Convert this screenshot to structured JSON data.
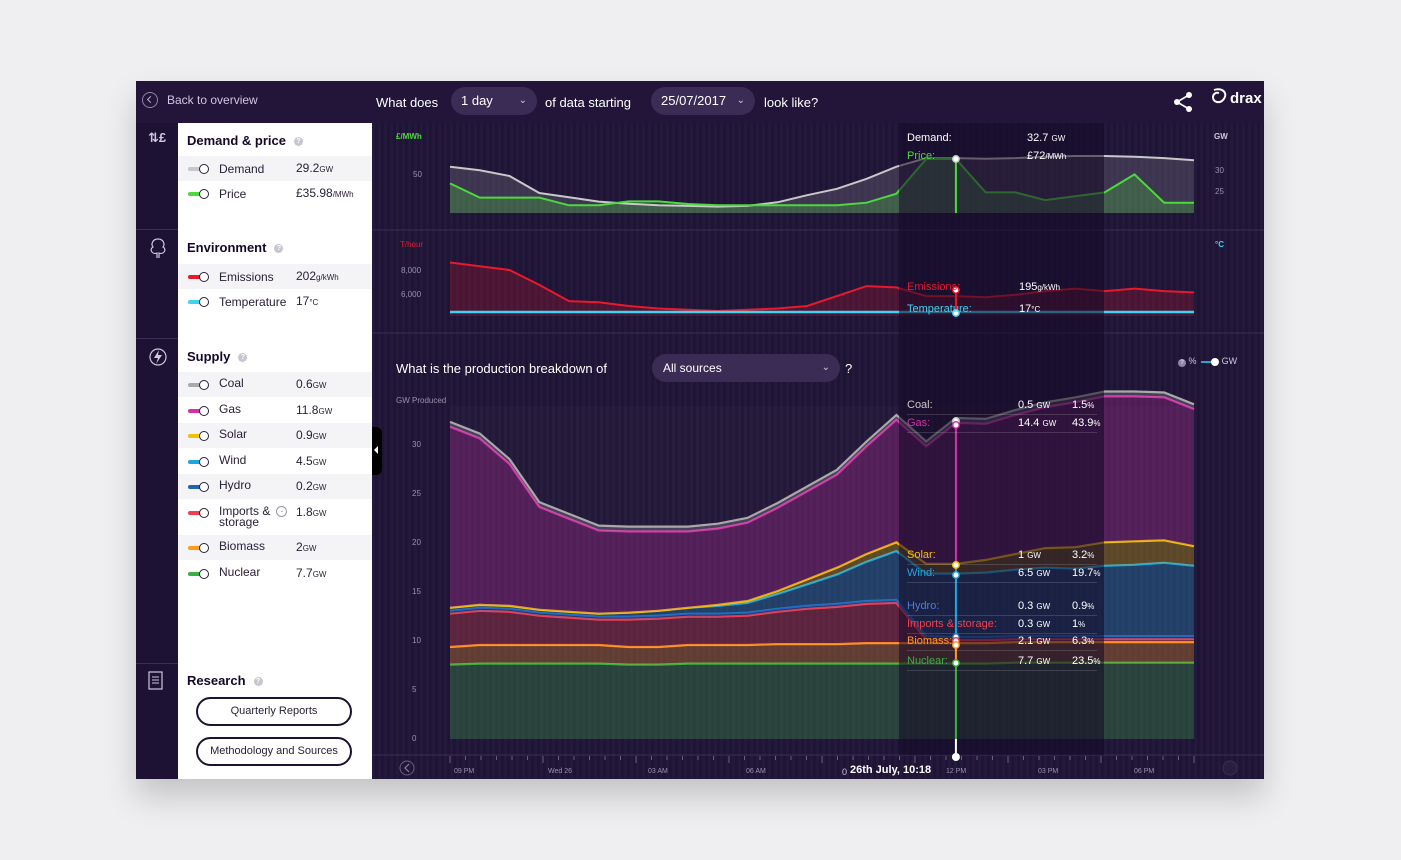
{
  "header": {
    "back_label": "Back to overview",
    "q_prefix": "What does",
    "period": "1 day",
    "q_mid": "of data starting",
    "start_date": "25/07/2017",
    "q_suffix": "look like?",
    "logo_text": "drax"
  },
  "panel": {
    "demand_price": {
      "title": "Demand & price",
      "rows": [
        {
          "label": "Demand",
          "value": "29.2",
          "unit": "GW",
          "color": "#c8c8c8"
        },
        {
          "label": "Price",
          "value": "£35.98",
          "unit": "/MWh",
          "color": "#4cd93c"
        }
      ]
    },
    "environment": {
      "title": "Environment",
      "rows": [
        {
          "label": "Emissions",
          "value": "202",
          "unit": "g/kWh",
          "color": "#e8192c"
        },
        {
          "label": "Temperature",
          "value": "17",
          "unit": "°C",
          "color": "#3fd3f0"
        }
      ]
    },
    "supply": {
      "title": "Supply",
      "rows": [
        {
          "label": "Coal",
          "value": "0.6",
          "unit": "GW",
          "color": "#a9a9a9"
        },
        {
          "label": "Gas",
          "value": "11.8",
          "unit": "GW",
          "color": "#d232a8"
        },
        {
          "label": "Solar",
          "value": "0.9",
          "unit": "GW",
          "color": "#f2c200"
        },
        {
          "label": "Wind",
          "value": "4.5",
          "unit": "GW",
          "color": "#1ea6e0"
        },
        {
          "label": "Hydro",
          "value": "0.2",
          "unit": "GW",
          "color": "#2461b8"
        },
        {
          "label": "Imports &",
          "label2": "storage",
          "value": "1.8",
          "unit": "GW",
          "color": "#f04050"
        },
        {
          "label": "Biomass",
          "value": "2",
          "unit": "GW",
          "color": "#ff9a1f"
        },
        {
          "label": "Nuclear",
          "value": "7.7",
          "unit": "GW",
          "color": "#3cb043"
        }
      ]
    },
    "research": {
      "title": "Research",
      "button1": "Quarterly Reports",
      "button2": "Methodology and Sources"
    }
  },
  "charts": {
    "top": {
      "y_label_left": "£/MWh",
      "y_label_right": "GW",
      "tick_left": "50",
      "ticks_right": [
        "30",
        "25"
      ],
      "tooltip": [
        {
          "label": "Demand:",
          "value": "32.7",
          "unit": "GW"
        },
        {
          "label": "Price:",
          "value": "£72",
          "unit": "/MWh"
        }
      ]
    },
    "mid": {
      "y_label_left": "T/hour",
      "y_label_right": "°C",
      "ticks_left": [
        "8,000",
        "6,000"
      ],
      "tooltip": [
        {
          "label": "Emissions:",
          "value": "195",
          "unit": "g/kWh"
        },
        {
          "label": "Temperature:",
          "value": "17",
          "unit": "°C"
        }
      ]
    },
    "main": {
      "question": "What is the production breakdown of",
      "source_select": "All sources",
      "question_end": "?",
      "pct_label": "%",
      "gw_label": "GW",
      "y_axis_label": "GW Produced",
      "y_ticks": [
        "30",
        "25",
        "20",
        "15",
        "10",
        "5",
        "0"
      ],
      "tooltip": [
        {
          "label": "Coal:",
          "gw": "0.5",
          "pct": "1.5"
        },
        {
          "label": "Gas:",
          "gw": "14.4",
          "pct": "43.9"
        },
        {
          "label": "Solar:",
          "gw": "1",
          "pct": "3.2"
        },
        {
          "label": "Wind:",
          "gw": "6.5",
          "pct": "19.7"
        },
        {
          "label": "Hydro:",
          "gw": "0.3",
          "pct": "0.9"
        },
        {
          "label": "Imports & storage:",
          "gw": "0.3",
          "pct": "1"
        },
        {
          "label": "Biomass:",
          "gw": "2.1",
          "pct": "6.3"
        },
        {
          "label": "Nuclear:",
          "gw": "7.7",
          "pct": "23.5"
        }
      ],
      "gw_unit": "GW",
      "pct_unit": "%"
    },
    "timeline": {
      "labels": [
        "09 PM",
        "Wed 26",
        "03 AM",
        "06 AM",
        "0",
        "12 PM",
        "03 PM",
        "06 PM"
      ],
      "current": "26th July, 10:18"
    }
  },
  "colors": {
    "background": "#1d1233",
    "demand": "#c8c8c8",
    "price": "#4cd93c",
    "emissions": "#e8192c",
    "temperature": "#3fd3f0"
  },
  "chart_data": {
    "type": "area",
    "y_axis_label": "GW Produced",
    "ylim": [
      0,
      33
    ],
    "x": [
      "18:00",
      "19:00",
      "20:00",
      "21:00",
      "22:00",
      "23:00",
      "00:00",
      "01:00",
      "02:00",
      "03:00",
      "04:00",
      "05:00",
      "06:00",
      "07:00",
      "08:00",
      "09:00",
      "10:00",
      "10:18",
      "11:00",
      "12:00",
      "13:00",
      "14:00",
      "15:00",
      "16:00",
      "17:00",
      "18:00"
    ],
    "x_tick_labels": [
      "09 PM",
      "Wed 26",
      "03 AM",
      "06 AM",
      "12 PM",
      "03 PM",
      "06 PM"
    ],
    "series": [
      {
        "name": "Nuclear",
        "color": "#3cb043",
        "values": [
          7.6,
          7.7,
          7.7,
          7.7,
          7.7,
          7.7,
          7.6,
          7.6,
          7.7,
          7.7,
          7.7,
          7.7,
          7.7,
          7.7,
          7.7,
          7.7,
          7.7,
          7.7,
          7.7,
          7.8,
          7.8,
          7.8,
          7.8,
          7.8,
          7.8,
          7.8
        ]
      },
      {
        "name": "Biomass",
        "color": "#ff9a1f",
        "values": [
          1.8,
          1.9,
          1.9,
          1.9,
          1.9,
          1.9,
          1.8,
          1.8,
          1.9,
          1.9,
          1.9,
          2.0,
          2.0,
          2.0,
          2.1,
          2.1,
          2.1,
          2.1,
          2.1,
          2.1,
          2.1,
          2.1,
          2.1,
          2.1,
          2.1,
          2.1
        ]
      },
      {
        "name": "Imports & storage",
        "color": "#f04050",
        "values": [
          3.4,
          3.5,
          3.4,
          3.0,
          2.8,
          2.6,
          2.8,
          2.9,
          2.9,
          2.9,
          3.0,
          3.3,
          3.6,
          3.8,
          4.0,
          4.1,
          0.4,
          0.3,
          0.3,
          0.3,
          0.3,
          0.3,
          0.3,
          0.3,
          0.3,
          0.3
        ]
      },
      {
        "name": "Hydro",
        "color": "#2461b8",
        "values": [
          0.3,
          0.3,
          0.3,
          0.3,
          0.3,
          0.3,
          0.3,
          0.3,
          0.3,
          0.3,
          0.3,
          0.3,
          0.3,
          0.3,
          0.3,
          0.3,
          0.3,
          0.3,
          0.3,
          0.3,
          0.3,
          0.3,
          0.3,
          0.3,
          0.3,
          0.3
        ]
      },
      {
        "name": "Wind",
        "color": "#1ea6e0",
        "values": [
          0.3,
          0.3,
          0.3,
          0.3,
          0.3,
          0.3,
          0.4,
          0.5,
          0.6,
          0.8,
          1.0,
          1.5,
          2.2,
          3.0,
          4.0,
          5.0,
          6.4,
          6.5,
          6.6,
          6.8,
          7.0,
          6.9,
          7.2,
          7.3,
          7.5,
          7.2
        ]
      },
      {
        "name": "Solar",
        "color": "#f2c200",
        "values": [
          0.0,
          0.0,
          0.0,
          0.0,
          0.0,
          0.0,
          0.0,
          0.0,
          0.0,
          0.1,
          0.2,
          0.3,
          0.5,
          0.7,
          0.8,
          0.9,
          1.0,
          1.0,
          1.3,
          1.6,
          2.0,
          2.2,
          2.4,
          2.4,
          2.3,
          2.0
        ]
      },
      {
        "name": "Gas",
        "color": "#d232a8",
        "values": [
          18.5,
          17.0,
          14.5,
          10.5,
          9.5,
          8.5,
          8.3,
          8.1,
          7.8,
          7.8,
          8.0,
          8.5,
          9.0,
          9.5,
          11.0,
          12.5,
          12.0,
          14.4,
          13.9,
          14.2,
          14.4,
          14.8,
          14.9,
          14.8,
          14.6,
          14.0
        ]
      },
      {
        "name": "Coal",
        "color": "#a9a9a9",
        "values": [
          0.5,
          0.5,
          0.5,
          0.5,
          0.5,
          0.5,
          0.5,
          0.5,
          0.5,
          0.5,
          0.5,
          0.5,
          0.5,
          0.5,
          0.5,
          0.5,
          0.5,
          0.5,
          0.5,
          0.5,
          0.5,
          0.5,
          0.5,
          0.5,
          0.5,
          0.5
        ]
      }
    ],
    "top_chart": {
      "demand_gw": [
        31.5,
        31.0,
        30.2,
        27.8,
        27.2,
        26.6,
        26.3,
        26.1,
        26.0,
        25.9,
        26.0,
        26.5,
        27.5,
        28.4,
        29.8,
        31.5,
        32.7,
        32.7,
        32.6,
        32.7,
        32.9,
        33.0,
        33.0,
        32.9,
        32.7,
        32.4
      ],
      "price_gbp_mwh": [
        53,
        42,
        42,
        42,
        36,
        36,
        39,
        39,
        37,
        36,
        36,
        36,
        36,
        36,
        38,
        45,
        72,
        72,
        46,
        46,
        40,
        43,
        46,
        60,
        38,
        38
      ]
    },
    "mid_chart": {
      "emissions_t_hour": [
        9300,
        9000,
        8700,
        7500,
        6200,
        6100,
        5800,
        5600,
        5500,
        5400,
        5500,
        5600,
        5800,
        6600,
        7400,
        7300,
        6600,
        6600,
        6500,
        6700,
        7000,
        7200,
        7000,
        7200,
        7000,
        6900
      ],
      "temperature_c": [
        17,
        17,
        17,
        17,
        17,
        17,
        17,
        17,
        17,
        17,
        17,
        17,
        17,
        17,
        17,
        17,
        17,
        17,
        17,
        17,
        17,
        17,
        17,
        17,
        17,
        17
      ]
    }
  }
}
